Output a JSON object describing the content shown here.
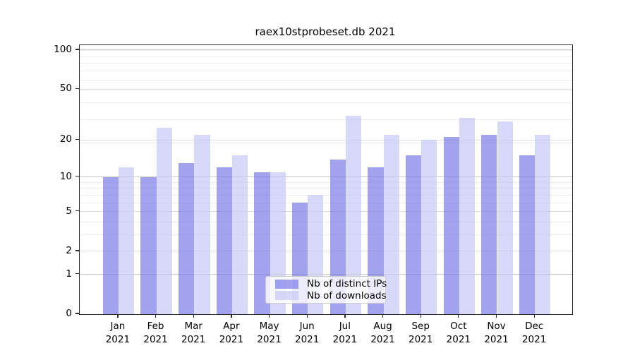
{
  "figure": {
    "title": "raex10stprobeset.db 2021"
  },
  "chart_data": {
    "type": "bar",
    "title": "raex10stprobeset.db 2021",
    "categories": [
      "Jan",
      "Feb",
      "Mar",
      "Apr",
      "May",
      "Jun",
      "Jul",
      "Aug",
      "Sep",
      "Oct",
      "Nov",
      "Dec"
    ],
    "category_year": "2021",
    "series": [
      {
        "name": "Nb of distinct IPs",
        "color": "rgba(114,114,230,0.66)",
        "values": [
          10,
          10,
          13,
          12,
          11,
          6,
          14,
          12,
          15,
          21,
          22,
          15
        ]
      },
      {
        "name": "Nb of downloads",
        "color": "rgba(196,196,244,0.66)",
        "values": [
          12,
          25,
          22,
          15,
          11,
          7,
          31,
          22,
          20,
          30,
          28,
          22
        ]
      }
    ],
    "y_axis": {
      "scale": "log10(1+value)",
      "tick_labels": [
        "0",
        "1",
        "2",
        "5",
        "10",
        "20",
        "50",
        "100"
      ],
      "tick_values": [
        0,
        1,
        2,
        5,
        10,
        20,
        50,
        100
      ],
      "top_value": 109
    },
    "gridlines": {
      "dark_values": [
        1,
        10,
        100
      ],
      "medium_values": [
        2,
        5,
        20,
        50
      ],
      "light_values": [
        3,
        4,
        6,
        7,
        8,
        9,
        19,
        29,
        39,
        49,
        59,
        69,
        79,
        89,
        99
      ]
    },
    "grid": true,
    "legend_position": "inside-bottom-center",
    "colors": {
      "grid_dark": "#c7c7c7",
      "grid_medium": "#dedede",
      "grid_light": "#ededed",
      "axis": "#2a2a2a"
    }
  }
}
